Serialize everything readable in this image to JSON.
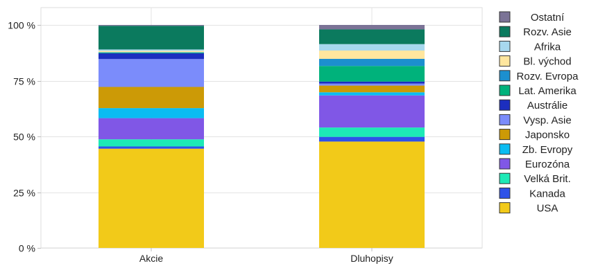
{
  "chart_data": {
    "type": "bar",
    "stacked": true,
    "categories": [
      "Akcie",
      "Dluhopisy"
    ],
    "yticks": [
      "0 %",
      "25 %",
      "50 %",
      "75 %",
      "100 %"
    ],
    "ylim": [
      0,
      100
    ],
    "grid": true,
    "legend_position": "right",
    "series": [
      {
        "name": "USA",
        "color": "#F2CA19",
        "values": [
          44.5,
          47.7
        ]
      },
      {
        "name": "Kanada",
        "color": "#2E52E8",
        "values": [
          1.0,
          2.1
        ]
      },
      {
        "name": "Velká Brit.",
        "color": "#1DE9B6",
        "values": [
          3.2,
          4.2
        ]
      },
      {
        "name": "Eurozóna",
        "color": "#8057E6",
        "values": [
          9.5,
          14.4
        ]
      },
      {
        "name": "Zb. Evropy",
        "color": "#0BBCF2",
        "values": [
          4.5,
          1.4
        ]
      },
      {
        "name": "Japonsko",
        "color": "#CC9A06",
        "values": [
          9.5,
          3.0
        ]
      },
      {
        "name": "Vysp. Asie",
        "color": "#7B8CFB",
        "values": [
          12.5,
          0.9
        ]
      },
      {
        "name": "Austrálie",
        "color": "#1C2EBF",
        "values": [
          2.6,
          0.9
        ]
      },
      {
        "name": "Lat. Amerika",
        "color": "#00B27B",
        "values": [
          0.3,
          7.0
        ]
      },
      {
        "name": "Rozv. Evropa",
        "color": "#1C8FCF",
        "values": [
          0.2,
          3.2
        ]
      },
      {
        "name": "Bl. východ",
        "color": "#FFE69E",
        "values": [
          0.6,
          3.7
        ]
      },
      {
        "name": "Afrika",
        "color": "#A7D8EE",
        "values": [
          0.6,
          2.9
        ]
      },
      {
        "name": "Rozv. Asie",
        "color": "#0B7A5E",
        "values": [
          10.6,
          6.6
        ]
      },
      {
        "name": "Ostatní",
        "color": "#7B7396",
        "values": [
          0.4,
          2.0
        ]
      }
    ]
  }
}
